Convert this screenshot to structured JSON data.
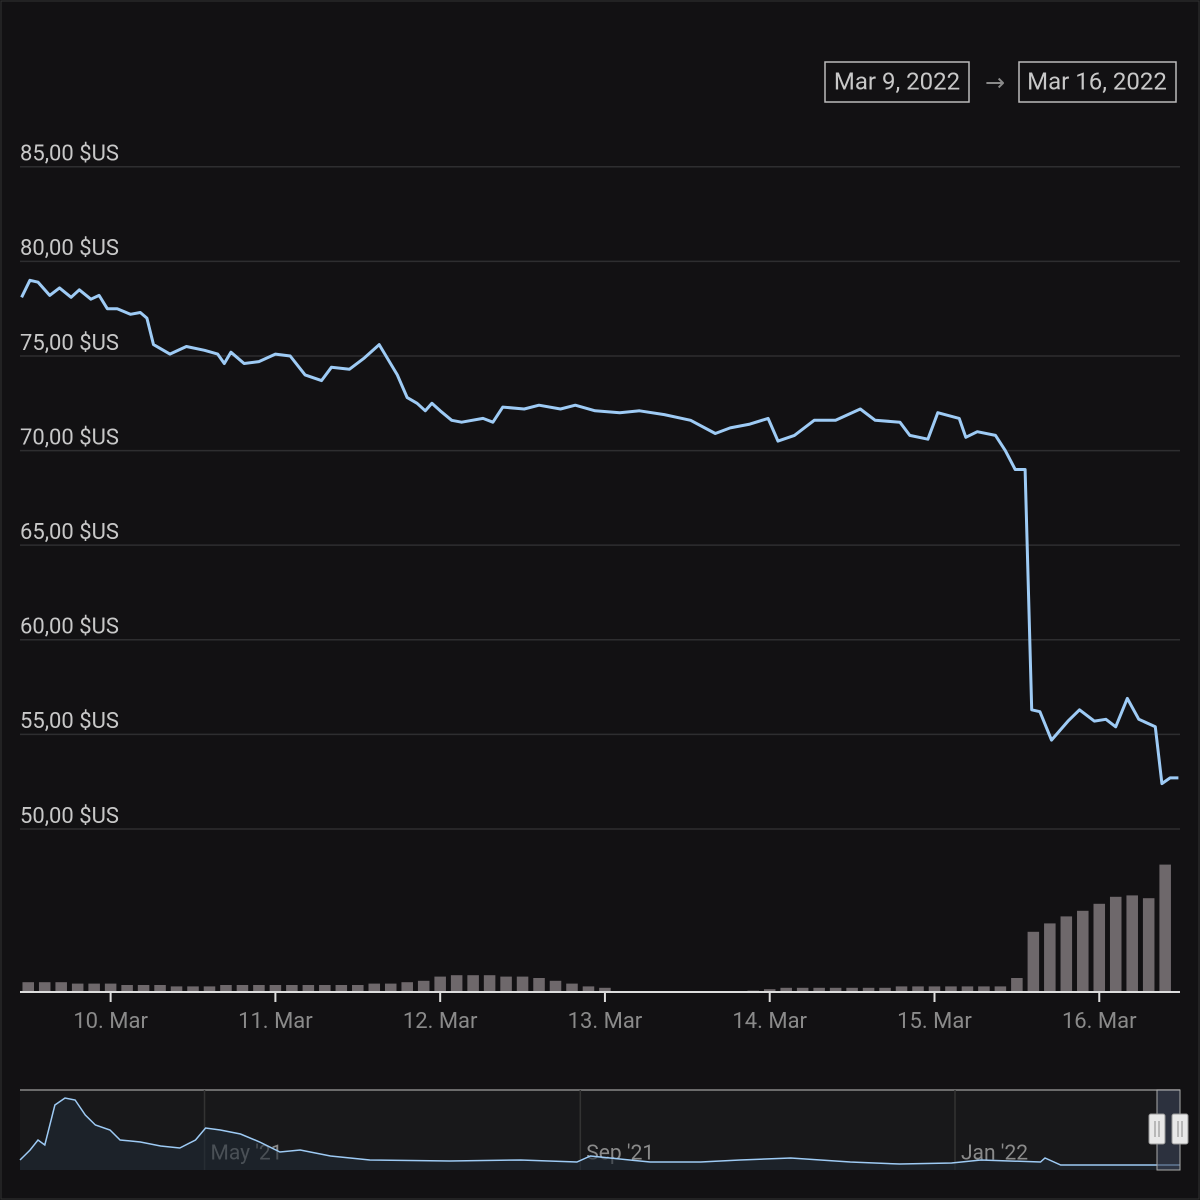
{
  "chart_data": {
    "type": "line",
    "date_range": {
      "start": "Mar 9, 2022",
      "arrow": "→",
      "end": "Mar 16, 2022"
    },
    "color": "#9ecbf5",
    "x": [
      9.46,
      9.51,
      9.56,
      9.63,
      9.69,
      9.76,
      9.81,
      9.88,
      9.93,
      9.98,
      10.04,
      10.12,
      10.18,
      10.22,
      10.26,
      10.36,
      10.41,
      10.46,
      10.57,
      10.65,
      10.69,
      10.73,
      10.81,
      10.9,
      11.0,
      11.09,
      11.18,
      11.28,
      11.34,
      11.45,
      11.54,
      11.63,
      11.74,
      11.8,
      11.86,
      11.91,
      11.95,
      12.0,
      12.07,
      12.13,
      12.26,
      12.32,
      12.38,
      12.51,
      12.6,
      12.73,
      12.82,
      12.94,
      13.09,
      13.21,
      13.36,
      13.52,
      13.67,
      13.76,
      13.88,
      13.99,
      14.05,
      14.15,
      14.27,
      14.4,
      14.55,
      14.64,
      14.79,
      14.85,
      14.96,
      15.02,
      15.15,
      15.19,
      15.26,
      15.37,
      15.43,
      15.49,
      15.55,
      15.59,
      15.64,
      15.71,
      15.81,
      15.88,
      15.97,
      16.04,
      16.1,
      16.17,
      16.24,
      16.34,
      16.38,
      16.43,
      16.48
    ],
    "values": [
      78.1,
      79.0,
      78.9,
      78.2,
      78.6,
      78.1,
      78.5,
      78.0,
      78.2,
      77.5,
      77.5,
      77.2,
      77.3,
      77.0,
      75.6,
      75.1,
      75.3,
      75.5,
      75.3,
      75.1,
      74.6,
      75.2,
      74.6,
      74.7,
      75.1,
      75.0,
      74.0,
      73.7,
      74.4,
      74.3,
      74.9,
      75.6,
      74.0,
      72.8,
      72.5,
      72.1,
      72.5,
      72.1,
      71.6,
      71.5,
      71.7,
      71.5,
      72.3,
      72.2,
      72.4,
      72.2,
      72.4,
      72.1,
      72.0,
      72.1,
      71.9,
      71.6,
      70.9,
      71.2,
      71.4,
      71.7,
      70.5,
      70.8,
      71.6,
      71.6,
      72.2,
      71.6,
      71.5,
      70.8,
      70.6,
      72.0,
      71.7,
      70.7,
      71.0,
      70.8,
      70.0,
      69.0,
      69.0,
      56.3,
      56.2,
      54.7,
      55.7,
      56.3,
      55.7,
      55.8,
      55.4,
      56.9,
      55.8,
      55.4,
      52.4,
      52.7,
      52.7
    ],
    "xlim": [
      9.45,
      16.49
    ],
    "xticks": [
      {
        "value": 10,
        "label": "10. Mar"
      },
      {
        "value": 11,
        "label": "11. Mar"
      },
      {
        "value": 12,
        "label": "12. Mar"
      },
      {
        "value": 13,
        "label": "13. Mar"
      },
      {
        "value": 14,
        "label": "14. Mar"
      },
      {
        "value": 15,
        "label": "15. Mar"
      },
      {
        "value": 16,
        "label": "16. Mar"
      }
    ],
    "ylim": [
      50,
      88
    ],
    "yticks": [
      {
        "value": 50,
        "label": "50,00 $US"
      },
      {
        "value": 55,
        "label": "55,00 $US"
      },
      {
        "value": 60,
        "label": "60,00 $US"
      },
      {
        "value": 65,
        "label": "65,00 $US"
      },
      {
        "value": 70,
        "label": "70,00 $US"
      },
      {
        "value": 75,
        "label": "75,00 $US"
      },
      {
        "value": 80,
        "label": "80,00 $US"
      },
      {
        "value": 85,
        "label": "85,00 $US"
      }
    ],
    "grid": true,
    "volume": {
      "color": "#6e686b",
      "vlim": [
        0,
        100
      ],
      "x": [
        9.5,
        9.6,
        9.7,
        9.8,
        9.9,
        10.0,
        10.1,
        10.2,
        10.3,
        10.4,
        10.5,
        10.6,
        10.7,
        10.8,
        10.9,
        11.0,
        11.1,
        11.2,
        11.3,
        11.4,
        11.5,
        11.6,
        11.7,
        11.8,
        11.9,
        12.0,
        12.1,
        12.2,
        12.3,
        12.4,
        12.5,
        12.6,
        12.7,
        12.8,
        12.9,
        13.0,
        13.1,
        13.2,
        13.3,
        13.4,
        13.5,
        13.6,
        13.7,
        13.8,
        13.9,
        14.0,
        14.1,
        14.2,
        14.3,
        14.4,
        14.5,
        14.6,
        14.7,
        14.8,
        14.9,
        15.0,
        15.1,
        15.2,
        15.3,
        15.4,
        15.5,
        15.6,
        15.7,
        15.8,
        15.9,
        16.0,
        16.1,
        16.2,
        16.3,
        16.4
      ],
      "values": [
        7,
        7,
        7,
        6,
        6,
        6,
        5,
        5,
        5,
        4,
        4,
        4,
        5,
        5,
        5,
        5,
        5,
        5,
        5,
        5,
        5,
        6,
        6,
        7,
        8,
        11,
        12,
        12,
        12,
        11,
        11,
        10,
        8,
        6,
        4,
        3,
        0,
        0,
        0,
        0,
        0,
        0,
        0,
        0,
        1,
        2,
        3,
        3,
        3,
        3,
        3,
        3,
        3,
        4,
        4,
        4,
        4,
        4,
        4,
        4,
        10,
        43,
        49,
        54,
        58,
        63,
        68,
        69,
        67,
        91
      ]
    },
    "navigator": {
      "color": "#9ecbf5",
      "x": [
        2021.169,
        2021.178,
        2021.185,
        2021.191,
        2021.2,
        2021.209,
        2021.218,
        2021.227,
        2021.236,
        2021.249,
        2021.258,
        2021.276,
        2021.294,
        2021.311,
        2021.325,
        2021.334,
        2021.347,
        2021.365,
        2021.382,
        2021.4,
        2021.418,
        2021.445,
        2021.48,
        2021.551,
        2021.614,
        2021.664,
        2021.676,
        2021.729,
        2021.774,
        2021.809,
        2021.854,
        2021.907,
        2021.951,
        2021.997,
        2022.023,
        2022.076,
        2022.08,
        2022.094,
        2022.129,
        2022.2
      ],
      "values": [
        10,
        20,
        30,
        25,
        65,
        72,
        70,
        55,
        45,
        40,
        30,
        28,
        24,
        22,
        30,
        42,
        40,
        36,
        28,
        18,
        20,
        14,
        10,
        9,
        10,
        8,
        14,
        8,
        8,
        10,
        12,
        8,
        6,
        7,
        10,
        8,
        12,
        5,
        5,
        5
      ],
      "xlim": [
        2021.169,
        2022.2
      ],
      "ylim": [
        0,
        80
      ],
      "xticks": [
        {
          "value": 2021.333,
          "label": "May '21"
        },
        {
          "value": 2021.667,
          "label": "Sep '21"
        },
        {
          "value": 2022.0,
          "label": "Jan '22"
        }
      ]
    }
  }
}
